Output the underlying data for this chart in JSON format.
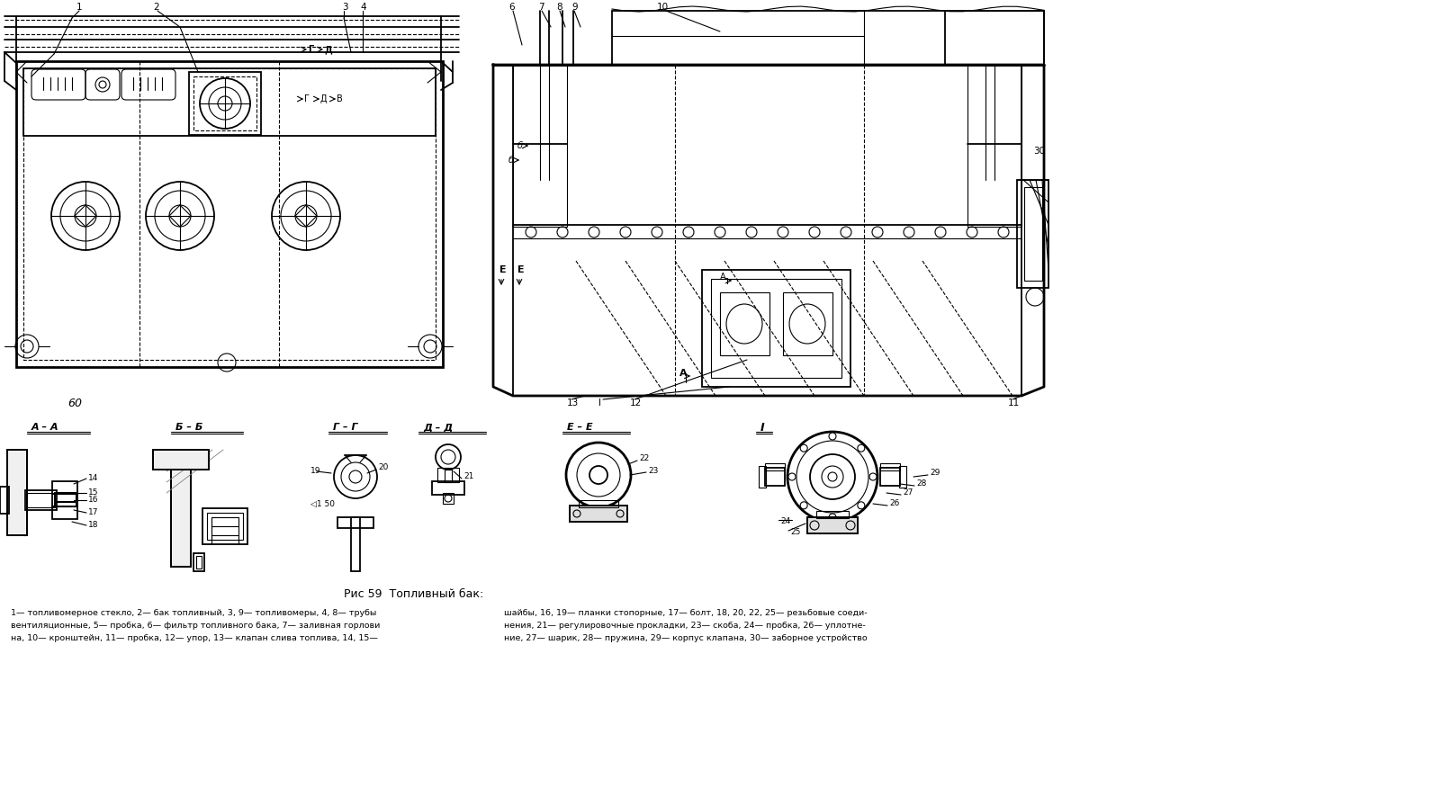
{
  "title": "Рис 59  Топливный бак:",
  "caption_line1": "1— топливомерное стекло, 2— бак топливный, 3, 9— топливомеры, 4, 8— трубы",
  "caption_line2": "вентиляционные, 5— пробка, 6— фильтр топливного бака, 7— заливная горлови",
  "caption_line3": "на, 10— кронштейн, 11— пробка, 12— упор, 13— клапан слива топлива, 14, 15—",
  "caption_line4": "шайбы, 16, 19— планки стопорные, 17— болт, 18, 20, 22, 25— резьбовые соеди-",
  "caption_line5": "нения, 21— регулировочные прокладки, 23— скоба, 24— пробка, 26— уплотне-",
  "caption_line6": "ние, 27— шарик, 28— пружина, 29— корпус клапана, 30— заборное устройство",
  "bg_color": "#ffffff",
  "line_color": "#000000",
  "figsize": [
    16.0,
    8.86
  ],
  "dpi": 100
}
